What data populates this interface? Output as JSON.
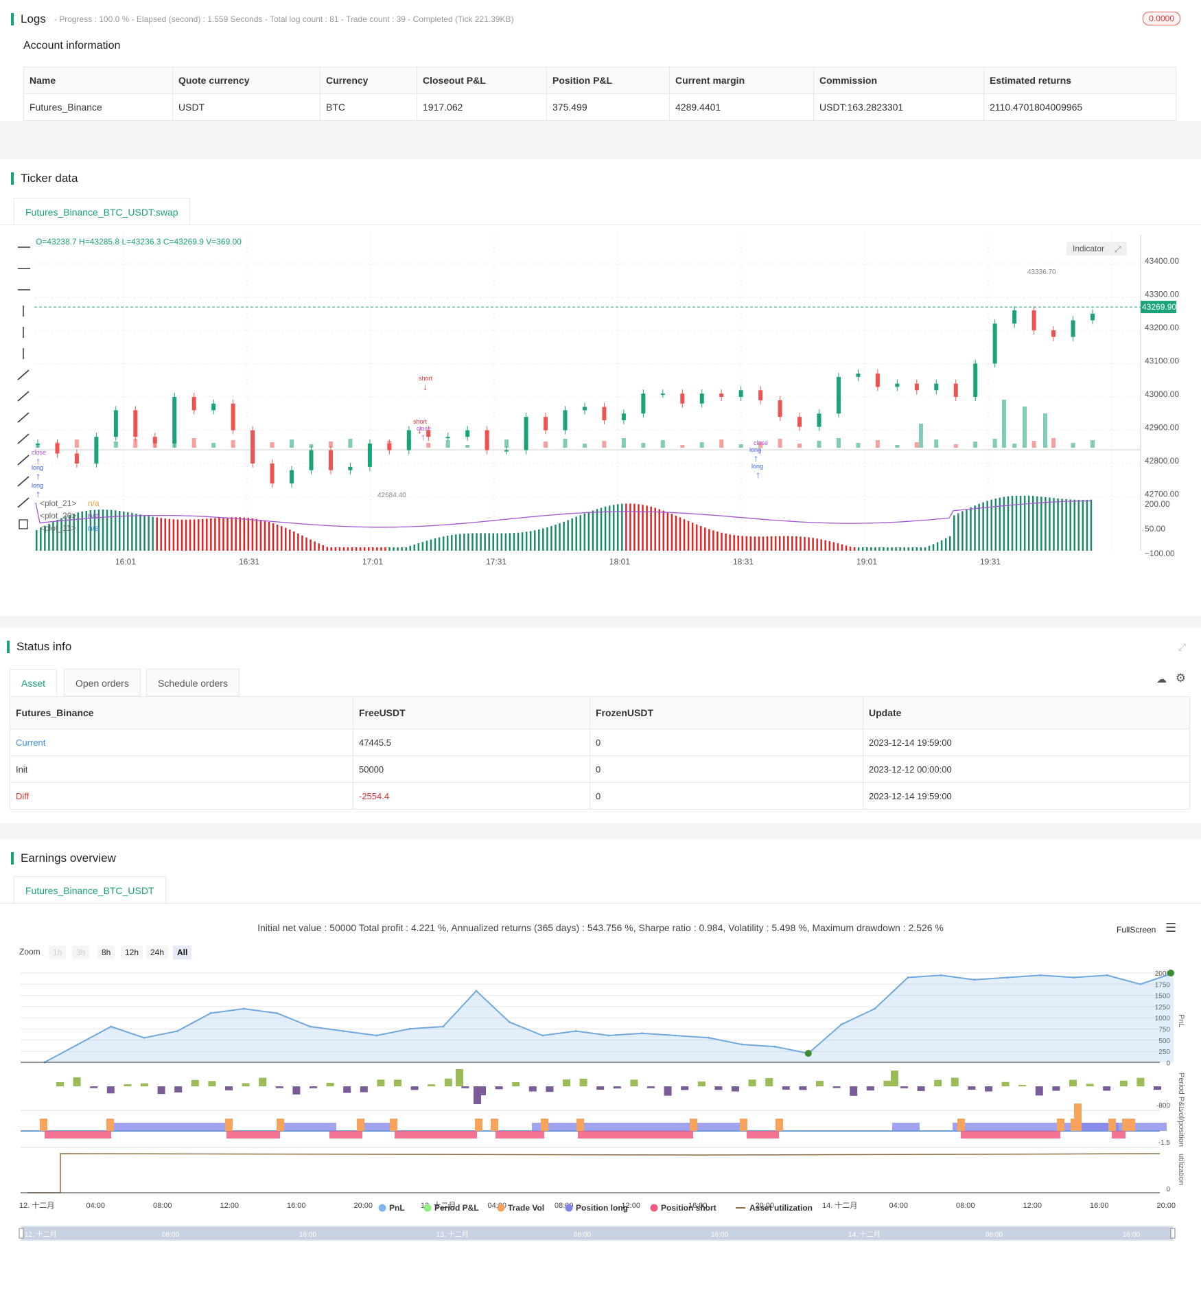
{
  "logs": {
    "title": "Logs",
    "progress": "- Progress : 100.0 % - Elapsed (second) : 1.559  Seconds - Total log count : 81 - Trade count : 39 - Completed (Tick 221.39KB)",
    "badge": "0.0000",
    "account_title": "Account information",
    "headers": [
      "Name",
      "Quote currency",
      "Currency",
      "Closeout P&L",
      "Position P&L",
      "Current margin",
      "Commission",
      "Estimated returns"
    ],
    "row": [
      "Futures_Binance",
      "USDT",
      "BTC",
      "1917.062",
      "375.499",
      "4289.4401",
      "USDT:163.2823301",
      "2110.4701804009965"
    ]
  },
  "ticker": {
    "title": "Ticker data",
    "tab": "Futures_Binance_BTC_USDT:swap",
    "ohlc": "O=43238.7 H=43285.8 L=43236.3 C=43269.9 V=369.00",
    "indicator_btn": "Indicator",
    "last_price": "43269.90",
    "high_label": "43336.70",
    "low_label": "42684.40",
    "price_ticks": [
      "43400.00",
      "43300.00",
      "43200.00",
      "43100.00",
      "43000.00",
      "42900.00",
      "42800.00",
      "42700.00"
    ],
    "osc_ticks": [
      "200.00",
      "50.00",
      "−100.00"
    ],
    "time_ticks": [
      "16:01",
      "16:31",
      "17:01",
      "17:31",
      "18:01",
      "18:31",
      "19:01",
      "19:31"
    ],
    "legend": [
      {
        "name": "<plot_21>",
        "value": "n/a",
        "color": "#e8a33d"
      },
      {
        "name": "<plot_20>",
        "value": "n/a",
        "color": "#9c4fd1"
      },
      {
        "name": "<plot_11>",
        "value": "n/a",
        "color": "#3b82f6"
      }
    ],
    "signals": [
      "short",
      "short",
      "close",
      "close",
      "long",
      "long",
      "close",
      "long",
      "close",
      "long"
    ]
  },
  "status": {
    "title": "Status info",
    "tabs": [
      "Asset",
      "Open orders",
      "Schedule orders"
    ],
    "headers": [
      "Futures_Binance",
      "FreeUSDT",
      "FrozenUSDT",
      "Update"
    ],
    "rows": [
      {
        "label": "Current",
        "free": "47445.5",
        "frozen": "0",
        "update": "2023-12-14 19:59:00"
      },
      {
        "label": "Init",
        "free": "50000",
        "frozen": "0",
        "update": "2023-12-12 00:00:00"
      },
      {
        "label": "Diff",
        "free": "-2554.4",
        "frozen": "0",
        "update": "2023-12-14 19:59:00"
      }
    ]
  },
  "earnings": {
    "title": "Earnings overview",
    "tab": "Futures_Binance_BTC_USDT",
    "summary": "Initial net value : 50000 Total profit : 4.221 %, Annualized returns (365 days) : 543.756 %, Sharpe ratio : 0.984, Volatility : 5.498 %, Maximum drawdown : 2.526 %",
    "fullscreen": "FullScreen",
    "zoom_label": "Zoom",
    "zoom_buttons": [
      "1h",
      "3h",
      "8h",
      "12h",
      "24h",
      "All"
    ],
    "pnl_ticks": [
      "2000",
      "1750",
      "1500",
      "1250",
      "1000",
      "750",
      "500",
      "250",
      "0"
    ],
    "axis_labels": [
      "PnL",
      "Period P&L",
      "vol/position",
      "utilization"
    ],
    "period_tick": "-800",
    "vol_tick": "-1.5",
    "util_tick": "0",
    "x_ticks": [
      "12. 十二月",
      "04:00",
      "08:00",
      "12:00",
      "16:00",
      "20:00",
      "13. 十二月",
      "04:00",
      "08:00",
      "12:00",
      "16:00",
      "20:00",
      "14. 十二月",
      "04:00",
      "08:00",
      "12:00",
      "16:00",
      "20:00"
    ],
    "legend": [
      {
        "name": "PnL",
        "color": "#7cb5ec"
      },
      {
        "name": "Period P&L",
        "color": "#90ed7d"
      },
      {
        "name": "Trade Vol",
        "color": "#f7a35c"
      },
      {
        "name": "Position long",
        "color": "#8085e9"
      },
      {
        "name": "Position short",
        "color": "#f15c80"
      },
      {
        "name": "Asset utilization",
        "color": "#8d6e3f"
      }
    ],
    "navigator_labels": [
      "12. 十二月",
      "08:00",
      "16:00",
      "13. 十二月",
      "08:00",
      "16:00",
      "14. 十二月",
      "08:00",
      "16:00"
    ]
  },
  "chart_data": {
    "type": "line",
    "title": "",
    "xlabel": "",
    "ylabel": "PnL",
    "ylim": [
      0,
      2000
    ],
    "x": [
      "12-12 00:00",
      "12-12 02:00",
      "12-12 04:00",
      "12-12 06:00",
      "12-12 08:00",
      "12-12 10:00",
      "12-12 12:00",
      "12-12 14:00",
      "12-12 16:00",
      "12-12 18:00",
      "12-12 20:00",
      "12-12 22:00",
      "12-13 00:00",
      "12-13 02:00",
      "12-13 04:00",
      "12-13 06:00",
      "12-13 08:00",
      "12-13 10:00",
      "12-13 12:00",
      "12-13 14:00",
      "12-13 16:00",
      "12-13 18:00",
      "12-13 20:00",
      "12-13 22:00",
      "12-14 00:00",
      "12-14 02:00",
      "12-14 04:00",
      "12-14 06:00",
      "12-14 08:00",
      "12-14 10:00",
      "12-14 12:00",
      "12-14 14:00",
      "12-14 16:00",
      "12-14 18:00",
      "12-14 20:00"
    ],
    "series": [
      {
        "name": "PnL",
        "values": [
          0,
          400,
          800,
          550,
          700,
          1100,
          1200,
          1100,
          800,
          700,
          600,
          750,
          800,
          1600,
          900,
          600,
          700,
          600,
          650,
          600,
          550,
          400,
          350,
          200,
          850,
          1200,
          1900,
          1950,
          1850,
          1900,
          1950,
          1900,
          1950,
          1750,
          2000
        ]
      }
    ]
  }
}
